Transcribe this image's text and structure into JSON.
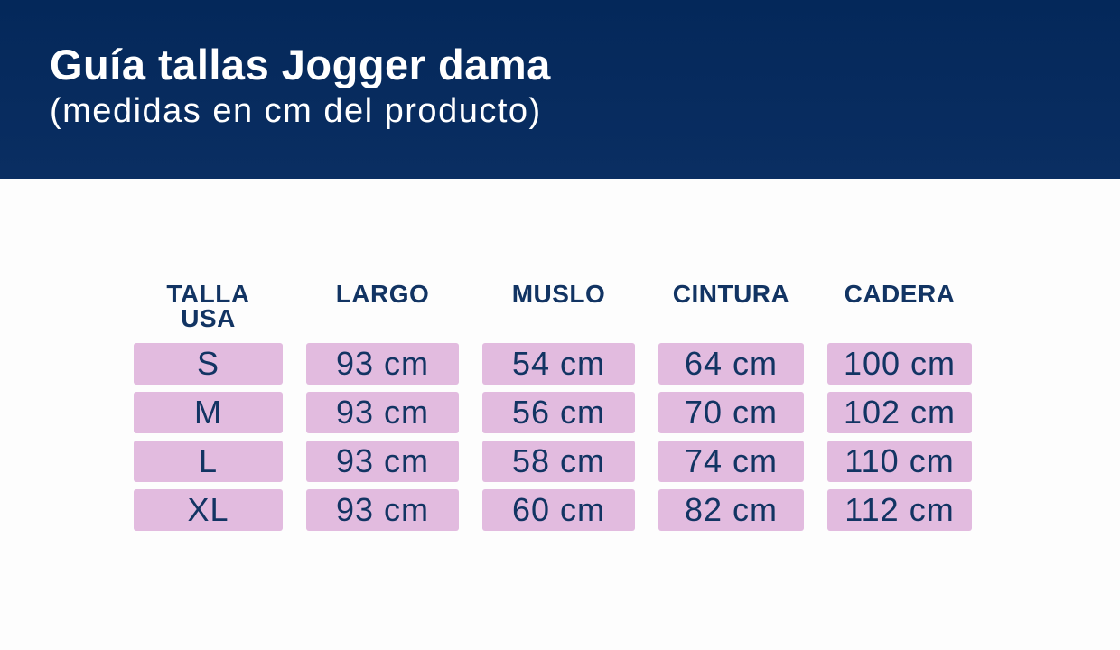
{
  "meta": {
    "banner_color": "#04285a",
    "cell_color": "#e2bbdf",
    "text_color": "#123463",
    "title_color": "#ffffff"
  },
  "header": {
    "title": "Guía tallas Jogger dama",
    "subtitle": "(medidas en cm del producto)"
  },
  "table": {
    "columns": [
      {
        "line1": "TALLA",
        "line2": "USA"
      },
      {
        "line1": "LARGO",
        "line2": ""
      },
      {
        "line1": "MUSLO",
        "line2": ""
      },
      {
        "line1": "CINTURA",
        "line2": ""
      },
      {
        "line1": "CADERA",
        "line2": ""
      }
    ],
    "rows": [
      [
        "S",
        "93 cm",
        "54 cm",
        "64 cm",
        "100 cm"
      ],
      [
        "M",
        "93 cm",
        "56 cm",
        "70 cm",
        "102 cm"
      ],
      [
        "L",
        "93 cm",
        "58 cm",
        "74 cm",
        "110 cm"
      ],
      [
        "XL",
        "93 cm",
        "60 cm",
        "82 cm",
        "112 cm"
      ]
    ]
  }
}
